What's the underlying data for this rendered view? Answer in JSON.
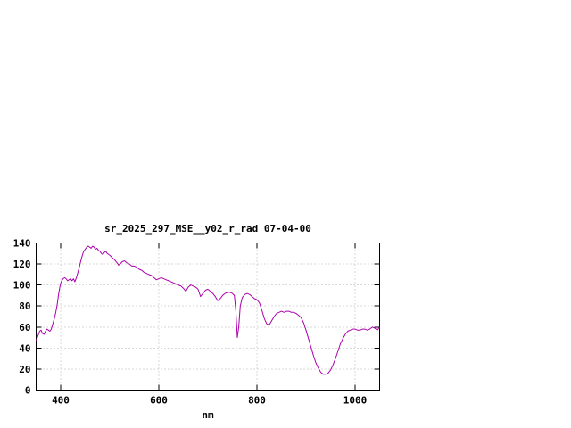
{
  "window": {
    "background": "#ffffff"
  },
  "chart_data": {
    "type": "line",
    "title": "sr_2025_297_MSE__y02_r_rad 07-04-00",
    "xlabel": "nm",
    "ylabel": "",
    "xlim": [
      350,
      1050
    ],
    "ylim": [
      0,
      140
    ],
    "x_ticks": [
      400,
      600,
      800,
      1000
    ],
    "y_ticks": [
      0,
      20,
      40,
      60,
      80,
      100,
      120,
      140
    ],
    "grid": true,
    "legend": "none",
    "axis_color": "#000000",
    "grid_color": "#b4b4b4",
    "text_color": "#000000",
    "series": [
      {
        "name": "sr_2025_297_MSE__y02_r_rad",
        "color": "#aa00aa",
        "points": [
          [
            350,
            47
          ],
          [
            354,
            52
          ],
          [
            357,
            56
          ],
          [
            360,
            57
          ],
          [
            363,
            54
          ],
          [
            366,
            53
          ],
          [
            369,
            56
          ],
          [
            372,
            58
          ],
          [
            375,
            57
          ],
          [
            378,
            56
          ],
          [
            381,
            58
          ],
          [
            384,
            63
          ],
          [
            387,
            68
          ],
          [
            390,
            74
          ],
          [
            393,
            82
          ],
          [
            396,
            92
          ],
          [
            399,
            100
          ],
          [
            402,
            104
          ],
          [
            405,
            106
          ],
          [
            408,
            107
          ],
          [
            411,
            106
          ],
          [
            414,
            104
          ],
          [
            417,
            105
          ],
          [
            420,
            106
          ],
          [
            423,
            104
          ],
          [
            426,
            106
          ],
          [
            429,
            103
          ],
          [
            432,
            107
          ],
          [
            435,
            112
          ],
          [
            438,
            117
          ],
          [
            441,
            123
          ],
          [
            444,
            128
          ],
          [
            447,
            132
          ],
          [
            450,
            134
          ],
          [
            453,
            136
          ],
          [
            456,
            137
          ],
          [
            459,
            136
          ],
          [
            462,
            135
          ],
          [
            465,
            137
          ],
          [
            468,
            136
          ],
          [
            471,
            134
          ],
          [
            474,
            135
          ],
          [
            477,
            133
          ],
          [
            480,
            132
          ],
          [
            483,
            130
          ],
          [
            486,
            129
          ],
          [
            489,
            131
          ],
          [
            492,
            132
          ],
          [
            495,
            130
          ],
          [
            498,
            129
          ],
          [
            501,
            128
          ],
          [
            505,
            126
          ],
          [
            510,
            124
          ],
          [
            515,
            121
          ],
          [
            518,
            119
          ],
          [
            521,
            120
          ],
          [
            525,
            122
          ],
          [
            530,
            123
          ],
          [
            535,
            121
          ],
          [
            540,
            120
          ],
          [
            545,
            118
          ],
          [
            550,
            118
          ],
          [
            555,
            117
          ],
          [
            560,
            115
          ],
          [
            565,
            114
          ],
          [
            570,
            112
          ],
          [
            575,
            111
          ],
          [
            580,
            110
          ],
          [
            585,
            109
          ],
          [
            590,
            107
          ],
          [
            595,
            105
          ],
          [
            600,
            106
          ],
          [
            605,
            107
          ],
          [
            610,
            106
          ],
          [
            615,
            105
          ],
          [
            620,
            104
          ],
          [
            625,
            103
          ],
          [
            630,
            102
          ],
          [
            635,
            101
          ],
          [
            640,
            100
          ],
          [
            645,
            99
          ],
          [
            650,
            97
          ],
          [
            655,
            94
          ],
          [
            660,
            98
          ],
          [
            665,
            100
          ],
          [
            670,
            99
          ],
          [
            675,
            98
          ],
          [
            680,
            96
          ],
          [
            685,
            89
          ],
          [
            690,
            92
          ],
          [
            695,
            95
          ],
          [
            700,
            96
          ],
          [
            705,
            94
          ],
          [
            710,
            92
          ],
          [
            715,
            89
          ],
          [
            720,
            85
          ],
          [
            725,
            87
          ],
          [
            730,
            90
          ],
          [
            735,
            92
          ],
          [
            740,
            93
          ],
          [
            745,
            93
          ],
          [
            750,
            92
          ],
          [
            754,
            90
          ],
          [
            757,
            75
          ],
          [
            760,
            50
          ],
          [
            763,
            60
          ],
          [
            766,
            80
          ],
          [
            770,
            88
          ],
          [
            775,
            91
          ],
          [
            780,
            92
          ],
          [
            785,
            91
          ],
          [
            790,
            89
          ],
          [
            795,
            87
          ],
          [
            800,
            86
          ],
          [
            805,
            83
          ],
          [
            810,
            76
          ],
          [
            815,
            68
          ],
          [
            820,
            63
          ],
          [
            825,
            62
          ],
          [
            830,
            66
          ],
          [
            835,
            70
          ],
          [
            840,
            73
          ],
          [
            845,
            74
          ],
          [
            850,
            75
          ],
          [
            855,
            74
          ],
          [
            860,
            75
          ],
          [
            865,
            75
          ],
          [
            870,
            74
          ],
          [
            875,
            74
          ],
          [
            880,
            73
          ],
          [
            885,
            71
          ],
          [
            890,
            69
          ],
          [
            895,
            64
          ],
          [
            900,
            57
          ],
          [
            905,
            49
          ],
          [
            910,
            41
          ],
          [
            915,
            33
          ],
          [
            920,
            26
          ],
          [
            925,
            21
          ],
          [
            930,
            17
          ],
          [
            935,
            15
          ],
          [
            940,
            15
          ],
          [
            945,
            16
          ],
          [
            950,
            19
          ],
          [
            955,
            24
          ],
          [
            960,
            30
          ],
          [
            965,
            37
          ],
          [
            970,
            44
          ],
          [
            975,
            49
          ],
          [
            980,
            53
          ],
          [
            985,
            56
          ],
          [
            990,
            57
          ],
          [
            995,
            58
          ],
          [
            1000,
            58
          ],
          [
            1005,
            57
          ],
          [
            1010,
            57
          ],
          [
            1015,
            58
          ],
          [
            1020,
            58
          ],
          [
            1025,
            57
          ],
          [
            1030,
            58
          ],
          [
            1035,
            60
          ],
          [
            1040,
            59
          ],
          [
            1045,
            57
          ],
          [
            1050,
            60
          ]
        ]
      }
    ]
  }
}
